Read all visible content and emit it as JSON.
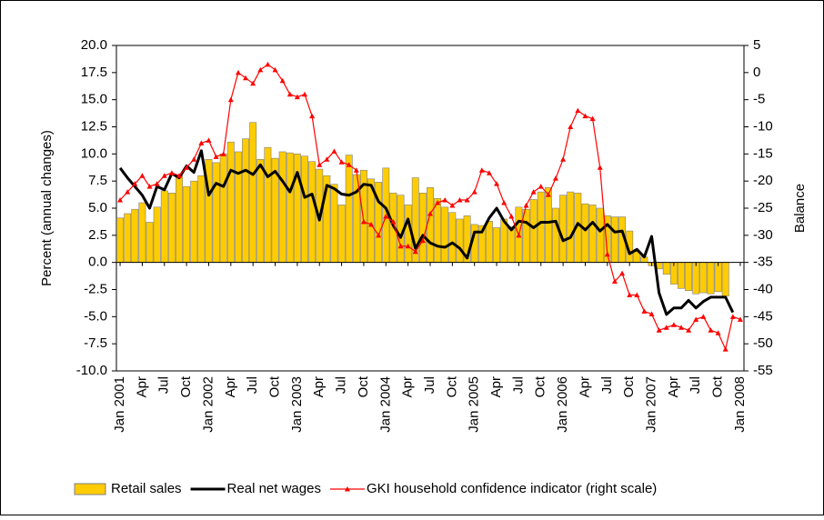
{
  "chart_data": {
    "type": "bar",
    "y_label": "Percent (annual changes)",
    "y2_label": "Balance",
    "categories": [
      "Jan 2001",
      null,
      null,
      "Apr",
      null,
      null,
      "Jul",
      null,
      null,
      "Oct",
      null,
      null,
      "Jan 2002",
      null,
      null,
      "Apr",
      null,
      null,
      "Jul",
      null,
      null,
      "Oct",
      null,
      null,
      "Jan 2003",
      null,
      null,
      "Apr",
      null,
      null,
      "Jul",
      null,
      null,
      "Oct",
      null,
      null,
      "Jan 2004",
      null,
      null,
      "Apr",
      null,
      null,
      "Jul",
      null,
      null,
      "Oct",
      null,
      null,
      "Jan 2005",
      null,
      null,
      "Apr",
      null,
      null,
      "Jul",
      null,
      null,
      "Oct",
      null,
      null,
      "Jan 2006",
      null,
      null,
      "Apr",
      null,
      null,
      "Jul",
      null,
      null,
      "Oct",
      null,
      null,
      "Jan 2007",
      null,
      null,
      "Apr",
      null,
      null,
      "Jul",
      null,
      null,
      "Oct",
      null,
      null,
      "Jan 2008"
    ],
    "series": [
      {
        "name": "Retail sales",
        "type": "bar",
        "color": "#ffcc00",
        "values": [
          4.1,
          4.5,
          4.9,
          5.5,
          3.7,
          5.1,
          6.6,
          6.4,
          8.0,
          7.0,
          7.5,
          8.0,
          9.5,
          9.2,
          10.0,
          11.1,
          10.2,
          11.4,
          12.9,
          9.5,
          10.6,
          9.6,
          10.2,
          10.1,
          10.0,
          9.8,
          9.3,
          8.6,
          8.0,
          7.2,
          5.3,
          9.9,
          8.1,
          8.5,
          7.7,
          7.4,
          8.7,
          6.4,
          6.2,
          5.3,
          7.8,
          6.4,
          6.9,
          5.9,
          5.1,
          4.6,
          4.0,
          4.3,
          3.5,
          3.4,
          3.8,
          3.2,
          4.0,
          3.3,
          5.1,
          4.9,
          5.8,
          6.5,
          6.9,
          5.0,
          6.2,
          6.5,
          6.4,
          5.4,
          5.3,
          5.0,
          4.3,
          4.2,
          4.2,
          2.9,
          1.0,
          0.5,
          -0.3,
          -0.6,
          -1.1,
          -2.0,
          -2.4,
          -2.6,
          -2.9,
          -2.8,
          -2.9,
          -2.7,
          -3.1,
          null,
          null
        ]
      },
      {
        "name": "Real net wages",
        "type": "line",
        "color": "#000000",
        "values": [
          8.7,
          7.8,
          7.0,
          6.2,
          5.0,
          7.0,
          6.7,
          8.2,
          7.8,
          8.9,
          8.3,
          10.3,
          6.2,
          7.3,
          7.0,
          8.5,
          8.2,
          8.5,
          8.1,
          9.0,
          7.9,
          8.4,
          7.5,
          6.5,
          8.3,
          6.0,
          6.3,
          3.9,
          7.1,
          6.8,
          6.3,
          6.2,
          6.5,
          7.2,
          7.1,
          5.6,
          5.0,
          3.4,
          2.3,
          4.0,
          1.3,
          2.5,
          1.8,
          1.5,
          1.4,
          1.8,
          1.3,
          0.4,
          2.8,
          2.8,
          4.1,
          5.0,
          3.8,
          3.0,
          3.8,
          3.7,
          3.2,
          3.7,
          3.7,
          3.8,
          2.0,
          2.3,
          3.6,
          3.0,
          3.7,
          2.9,
          3.5,
          2.8,
          2.9,
          0.8,
          1.2,
          0.5,
          2.4,
          -2.8,
          -4.8,
          -4.2,
          -4.2,
          -3.5,
          -4.2,
          -3.6,
          -3.2,
          -3.2,
          -3.2,
          -4.6,
          null
        ]
      },
      {
        "name": "GKI household confidence indicator (right scale)",
        "type": "line",
        "axis": "y2",
        "marker": "triangle",
        "color": "#ff0000",
        "values": [
          -23.5,
          -22,
          -20.5,
          -19,
          -21,
          -20.5,
          -19,
          -18.5,
          -19,
          -17.5,
          -16,
          -13,
          -12.5,
          -15.5,
          -15,
          -5,
          0,
          -1,
          -2,
          0.5,
          1.5,
          0.5,
          -1.5,
          -4,
          -4.5,
          -4,
          -8,
          -17,
          -16,
          -14.5,
          -16.5,
          -17,
          -18,
          -27.5,
          -28,
          -30,
          -26.5,
          -27.5,
          -32,
          -32,
          -33,
          -31,
          -26,
          -24,
          -23.5,
          -24.5,
          -23.5,
          -23.5,
          -22,
          -18,
          -18.5,
          -20.5,
          -24,
          -26.5,
          -30,
          -24.5,
          -22,
          -21,
          -22.5,
          -19.5,
          -16,
          -10,
          -7,
          -8,
          -8.5,
          -17.5,
          -33.5,
          -38.5,
          -37,
          -41,
          -41,
          -44,
          -44.5,
          -47.5,
          -47,
          -46.5,
          -47,
          -47.5,
          -45.5,
          -45,
          -47.5,
          -48,
          -51,
          -45,
          -45.5
        ]
      }
    ],
    "ylim": [
      -10,
      20
    ],
    "yticks": [
      {
        "value": 20,
        "label": "20.0"
      },
      17.5,
      {
        "value": 15,
        "label": "15.0"
      },
      12.5,
      {
        "value": 10,
        "label": "10.0"
      },
      7.5,
      {
        "value": 5,
        "label": "5.0"
      },
      2.5,
      {
        "value": 0,
        "label": "0.0"
      },
      -2.5,
      {
        "value": -5,
        "label": "-5.0"
      },
      -7.5,
      {
        "value": -10,
        "label": "-10.0"
      }
    ],
    "y2lim": [
      -55,
      5
    ],
    "y2ticks": [
      5,
      0,
      -5,
      -10,
      -15,
      -20,
      -25,
      -30,
      -35,
      -40,
      -45,
      -50,
      -55
    ],
    "legend": "bottom"
  }
}
